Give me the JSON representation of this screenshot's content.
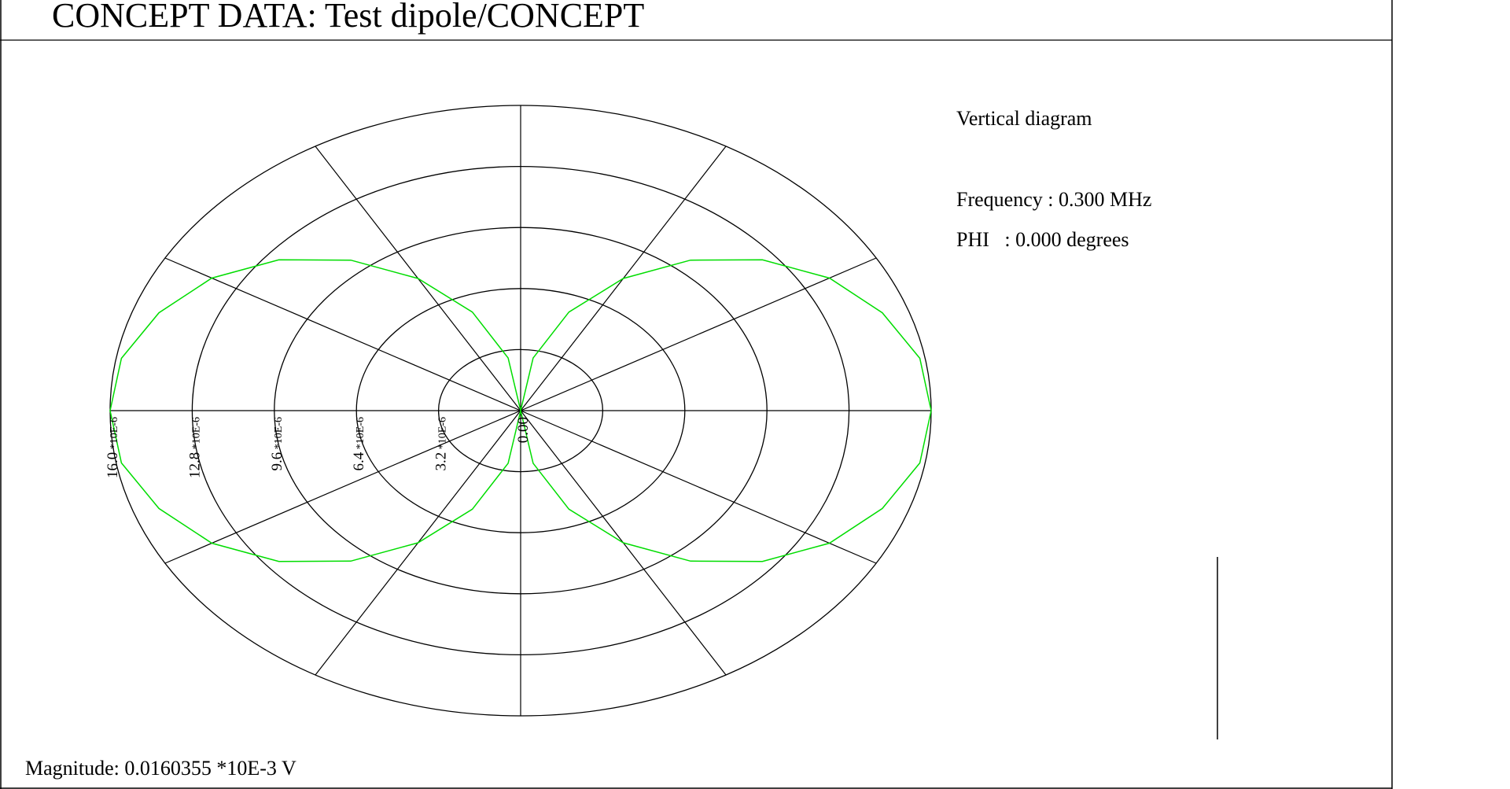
{
  "title": "CONCEPT DATA: Test dipole/CONCEPT",
  "info": {
    "diagram_type": "Vertical diagram",
    "frequency_label": "Frequency : 0.300 MHz",
    "phi_label": "PHI   : 0.000 degrees"
  },
  "magnitude_label": "Magnitude: 0.0160355 *10E-3 V",
  "colors": {
    "grid": "#000000",
    "pattern": "#00dd00",
    "background": "#ffffff"
  },
  "chart_data": {
    "type": "polar",
    "radial_unit": "*10E-6",
    "radial_max": 16.0,
    "radial_ticks": [
      {
        "value": 0.0,
        "label": "0.00"
      },
      {
        "value": 3.2,
        "label": "3.2"
      },
      {
        "value": 6.4,
        "label": "6.4"
      },
      {
        "value": 9.6,
        "label": "9.6"
      },
      {
        "value": 12.8,
        "label": "12.8"
      },
      {
        "value": 16.0,
        "label": "16.0"
      }
    ],
    "spoke_angles_deg": [
      0,
      30,
      60,
      90,
      120,
      150,
      180,
      210,
      240,
      270,
      300,
      330
    ],
    "series": [
      {
        "angles_deg": [
          0,
          10,
          20,
          30,
          40,
          50,
          60,
          70,
          80,
          90,
          100,
          110,
          120,
          130,
          140,
          150,
          160,
          170,
          180,
          190,
          200,
          210,
          220,
          230,
          240,
          250,
          260,
          270,
          280,
          290,
          300,
          310,
          320,
          330,
          340,
          350,
          360
        ],
        "values": [
          16.0,
          15.8,
          15.0,
          13.9,
          12.3,
          10.3,
          8.0,
          5.5,
          2.8,
          0.0,
          2.8,
          5.5,
          8.0,
          10.3,
          12.3,
          13.9,
          15.0,
          15.8,
          16.0,
          15.8,
          15.0,
          13.9,
          12.3,
          10.3,
          8.0,
          5.5,
          2.8,
          0.0,
          2.8,
          5.5,
          8.0,
          10.3,
          12.3,
          13.9,
          15.0,
          15.8,
          16.0
        ]
      }
    ]
  }
}
